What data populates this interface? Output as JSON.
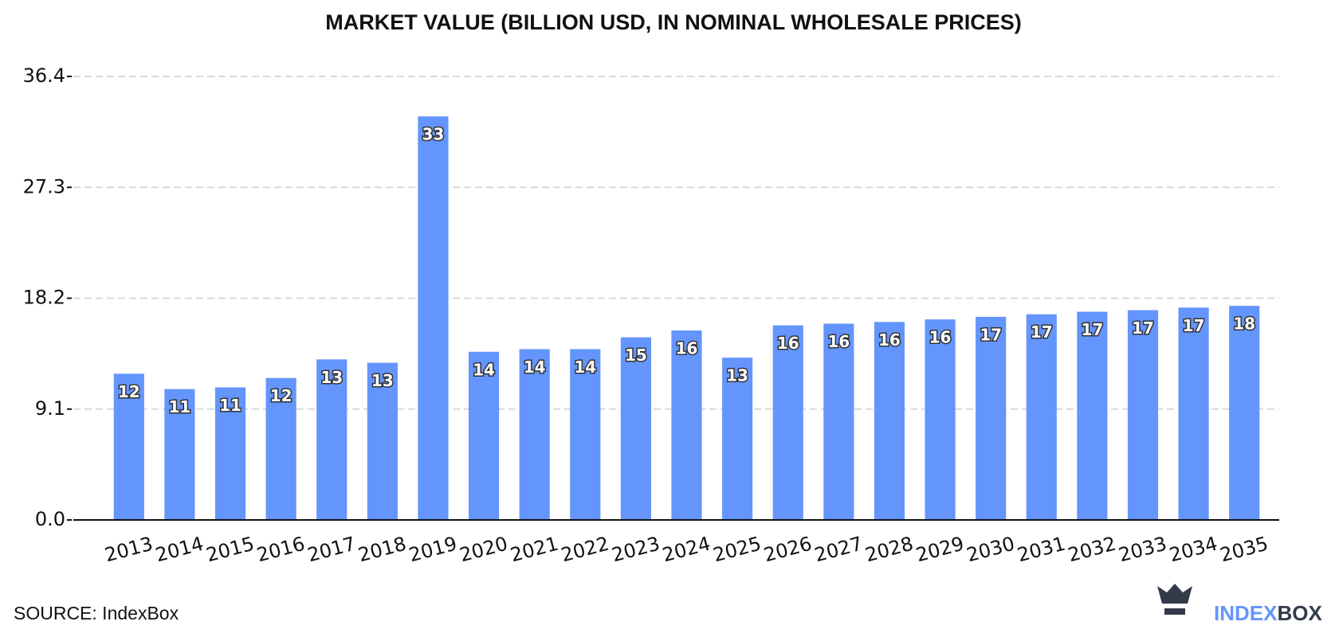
{
  "chart_data": {
    "type": "bar",
    "title": "MARKET VALUE (BILLION USD, IN NOMINAL WHOLESALE PRICES)",
    "categories": [
      "2013",
      "2014",
      "2015",
      "2016",
      "2017",
      "2018",
      "2019",
      "2020",
      "2021",
      "2022",
      "2023",
      "2024",
      "2025",
      "2026",
      "2027",
      "2028",
      "2029",
      "2030",
      "2031",
      "2032",
      "2033",
      "2034",
      "2035"
    ],
    "values": [
      12.0,
      10.74,
      10.88,
      11.65,
      13.18,
      12.9,
      33.12,
      13.8,
      14.02,
      14.02,
      14.99,
      15.55,
      13.32,
      15.97,
      16.11,
      16.25,
      16.46,
      16.67,
      16.88,
      17.09,
      17.22,
      17.43,
      17.57
    ],
    "value_labels": [
      "12",
      "11",
      "11",
      "12",
      "13",
      "13",
      "33",
      "14",
      "14",
      "14",
      "15",
      "16",
      "13",
      "16",
      "16",
      "16",
      "16",
      "17",
      "17",
      "17",
      "17",
      "17",
      "18"
    ],
    "color": "#6495fc",
    "ylim": [
      0,
      36.4
    ],
    "yticks": [
      {
        "value": 0,
        "label": "0.0"
      },
      9.1,
      18.2,
      27.3,
      36.4
    ],
    "grid": true
  },
  "footer": {
    "source": "SOURCE: IndexBox",
    "logo": [
      "INDEX",
      "BOX"
    ]
  }
}
